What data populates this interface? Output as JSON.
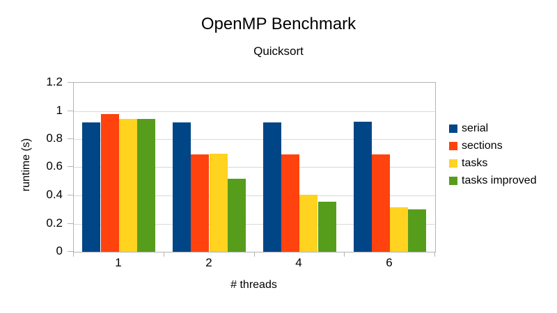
{
  "chart_data": {
    "type": "bar",
    "title": "OpenMP Benchmark",
    "subtitle": "Quicksort",
    "xlabel": "# threads",
    "ylabel": "runtime (s)",
    "categories": [
      "1",
      "2",
      "4",
      "6"
    ],
    "series": [
      {
        "name": "serial",
        "color": "#004586",
        "values": [
          0.92,
          0.92,
          0.92,
          0.925
        ]
      },
      {
        "name": "sections",
        "color": "#ff420e",
        "values": [
          0.98,
          0.69,
          0.69,
          0.69
        ]
      },
      {
        "name": "tasks",
        "color": "#ffd320",
        "values": [
          0.945,
          0.695,
          0.405,
          0.315
        ]
      },
      {
        "name": "tasks improved",
        "color": "#579d1c",
        "values": [
          0.945,
          0.52,
          0.355,
          0.3
        ]
      }
    ],
    "ylim": [
      0,
      1.2
    ],
    "ytick_step": 0.2,
    "yticks": [
      "0",
      "0.2",
      "0.4",
      "0.6",
      "0.8",
      "1",
      "1.2"
    ],
    "grid": true,
    "legend_position": "right"
  },
  "colors": {
    "background": "#ffffff",
    "gridline": "#d9d9d9",
    "axis": "#b3b3b3",
    "text": "#000000"
  }
}
